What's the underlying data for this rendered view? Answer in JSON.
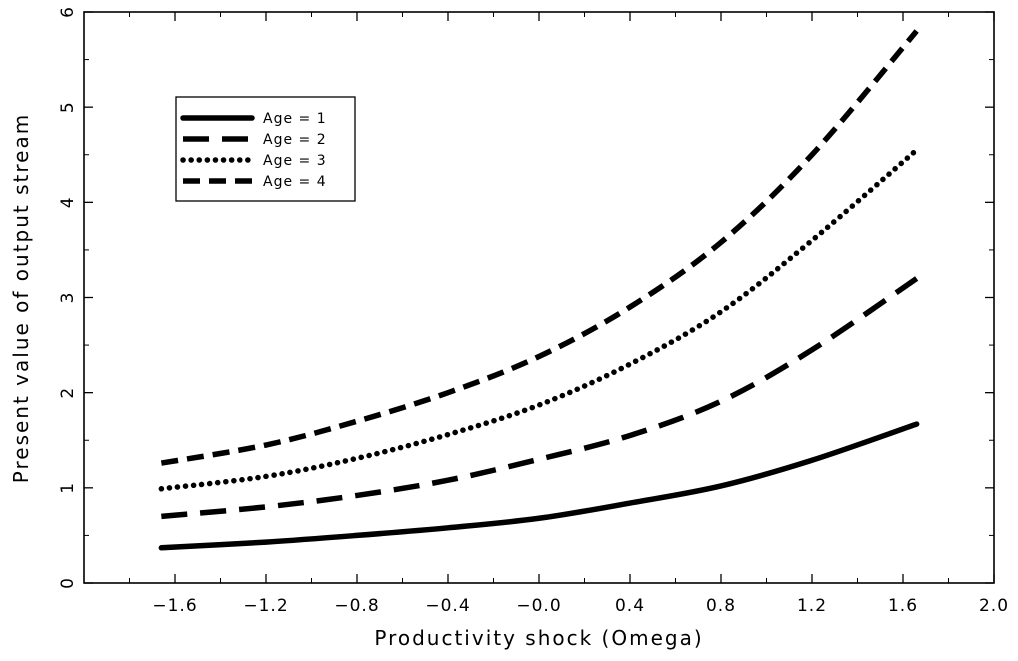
{
  "chart_data": {
    "type": "line",
    "xlabel": "Productivity shock (Omega)",
    "ylabel": "Present value of output stream",
    "xlim": [
      -2.0,
      2.0
    ],
    "ylim": [
      0,
      6
    ],
    "x_ticks": [
      -1.6,
      -1.2,
      -0.8,
      -0.4,
      0.0,
      0.4,
      0.8,
      1.2,
      1.6,
      2.0
    ],
    "x_tick_labels": [
      "−1.6",
      "−1.2",
      "−0.8",
      "−0.4",
      "−0.0",
      "0.4",
      "0.8",
      "1.2",
      "1.6",
      "2.0"
    ],
    "y_ticks": [
      0,
      1,
      2,
      3,
      4,
      5,
      6
    ],
    "y_tick_labels": [
      "0",
      "1",
      "2",
      "3",
      "4",
      "5",
      "6"
    ],
    "legend_position": "top-left",
    "grid": false,
    "x": [
      -1.66,
      -1.2,
      -0.8,
      -0.4,
      0.0,
      0.4,
      0.8,
      1.2,
      1.66
    ],
    "series": [
      {
        "name": "Age = 1",
        "line_style": "solid",
        "values": [
          0.37,
          0.43,
          0.5,
          0.58,
          0.68,
          0.84,
          1.02,
          1.29,
          1.67
        ]
      },
      {
        "name": "Age = 2",
        "line_style": "long-dash",
        "values": [
          0.7,
          0.8,
          0.92,
          1.08,
          1.3,
          1.55,
          1.91,
          2.45,
          3.2
        ]
      },
      {
        "name": "Age = 3",
        "line_style": "dotted",
        "values": [
          0.99,
          1.12,
          1.31,
          1.56,
          1.87,
          2.3,
          2.85,
          3.6,
          4.55
        ]
      },
      {
        "name": "Age = 4",
        "line_style": "dash",
        "values": [
          1.26,
          1.45,
          1.7,
          2.0,
          2.38,
          2.9,
          3.58,
          4.5,
          5.8
        ]
      }
    ]
  }
}
